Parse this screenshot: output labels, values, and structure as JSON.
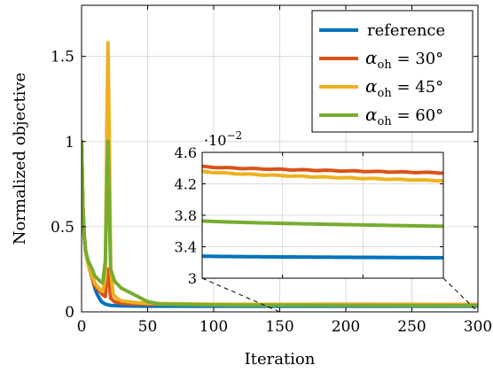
{
  "chart_data": {
    "type": "line",
    "xlabel": "Iteration",
    "ylabel": "Normalized objective",
    "xlim": [
      0,
      300
    ],
    "ylim": [
      0,
      1.8
    ],
    "xticks": [
      0,
      50,
      100,
      150,
      200,
      250,
      300
    ],
    "yticks": [
      0,
      0.5,
      1,
      1.5
    ],
    "ytick_labels": [
      "0",
      "0.5",
      "1",
      "1.5"
    ],
    "grid": true,
    "legend_position": "top-right",
    "series": [
      {
        "name": "reference",
        "color": "#0072BD",
        "points": [
          [
            0,
            1.0
          ],
          [
            1,
            0.62
          ],
          [
            2,
            0.45
          ],
          [
            3,
            0.36
          ],
          [
            5,
            0.28
          ],
          [
            8,
            0.2
          ],
          [
            10,
            0.14
          ],
          [
            12,
            0.1
          ],
          [
            15,
            0.06
          ],
          [
            18,
            0.045
          ],
          [
            22,
            0.038
          ],
          [
            30,
            0.035
          ],
          [
            50,
            0.033
          ],
          [
            100,
            0.033
          ],
          [
            200,
            0.033
          ],
          [
            300,
            0.033
          ]
        ]
      },
      {
        "name": "αoh = 30°",
        "label_alpha": "α",
        "label_sub": "oh",
        "label_rest": " = 30°",
        "color": "#D95319",
        "points": [
          [
            0,
            1.0
          ],
          [
            1,
            0.62
          ],
          [
            2,
            0.45
          ],
          [
            3,
            0.36
          ],
          [
            5,
            0.28
          ],
          [
            8,
            0.2
          ],
          [
            10,
            0.15
          ],
          [
            14,
            0.12
          ],
          [
            16,
            0.1
          ],
          [
            18,
            0.09
          ],
          [
            19,
            0.2
          ],
          [
            20,
            0.25
          ],
          [
            21,
            0.18
          ],
          [
            22,
            0.08
          ],
          [
            25,
            0.06
          ],
          [
            30,
            0.05
          ],
          [
            50,
            0.045
          ],
          [
            100,
            0.044
          ],
          [
            200,
            0.044
          ],
          [
            300,
            0.043
          ]
        ]
      },
      {
        "name": "αoh = 45°",
        "label_alpha": "α",
        "label_sub": "oh",
        "label_rest": " = 45°",
        "color": "#EDB120",
        "points": [
          [
            0,
            1.0
          ],
          [
            1,
            0.62
          ],
          [
            2,
            0.45
          ],
          [
            3,
            0.36
          ],
          [
            5,
            0.28
          ],
          [
            8,
            0.21
          ],
          [
            10,
            0.17
          ],
          [
            14,
            0.13
          ],
          [
            16,
            0.12
          ],
          [
            18,
            0.2
          ],
          [
            19,
            1.0
          ],
          [
            20,
            1.58
          ],
          [
            21,
            1.0
          ],
          [
            22,
            0.25
          ],
          [
            24,
            0.1
          ],
          [
            27,
            0.08
          ],
          [
            30,
            0.065
          ],
          [
            40,
            0.055
          ],
          [
            50,
            0.05
          ],
          [
            100,
            0.045
          ],
          [
            200,
            0.043
          ],
          [
            300,
            0.042
          ]
        ]
      },
      {
        "name": "αoh = 60°",
        "label_alpha": "α",
        "label_sub": "oh",
        "label_rest": " = 60°",
        "color": "#77AC30",
        "points": [
          [
            0,
            1.0
          ],
          [
            1,
            0.62
          ],
          [
            2,
            0.45
          ],
          [
            3,
            0.36
          ],
          [
            5,
            0.3
          ],
          [
            8,
            0.25
          ],
          [
            10,
            0.21
          ],
          [
            14,
            0.18
          ],
          [
            16,
            0.17
          ],
          [
            18,
            0.3
          ],
          [
            19,
            0.7
          ],
          [
            20,
            1.0
          ],
          [
            21,
            0.6
          ],
          [
            22,
            0.25
          ],
          [
            25,
            0.18
          ],
          [
            30,
            0.14
          ],
          [
            40,
            0.1
          ],
          [
            50,
            0.06
          ],
          [
            60,
            0.045
          ],
          [
            100,
            0.04
          ],
          [
            200,
            0.038
          ],
          [
            300,
            0.037
          ]
        ]
      }
    ],
    "inset": {
      "xlim": [
        150,
        300
      ],
      "ylim": [
        0.03,
        0.046
      ],
      "yticks": [
        3,
        3.4,
        3.8,
        4.2,
        4.6
      ],
      "ytick_labels": [
        "3",
        "3.4",
        "3.8",
        "4.2",
        "4.6"
      ],
      "scale_label": "·10",
      "scale_exponent": "−2",
      "series": [
        {
          "name": "reference",
          "y": [
            0.0328,
            0.0326
          ]
        },
        {
          "name": "αoh = 30°",
          "y": [
            0.0442,
            0.0434
          ]
        },
        {
          "name": "αoh = 45°",
          "y": [
            0.0436,
            0.0424
          ]
        },
        {
          "name": "αoh = 60°",
          "y": [
            0.0373,
            0.0366
          ]
        }
      ]
    }
  }
}
